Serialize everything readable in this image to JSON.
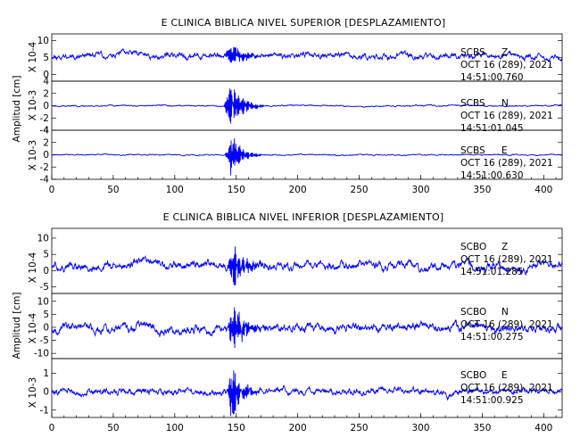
{
  "colors": {
    "trace": "#0000ff",
    "axes": "#000000",
    "background": "#ffffff"
  },
  "chart_data": [
    {
      "type": "line",
      "title": "E CLINICA BIBLICA NIVEL SUPERIOR [DESPLAZAMIENTO]",
      "ylabel": "Amplitud [cm]",
      "xlim": [
        0,
        415
      ],
      "x_ticks": [
        0,
        50,
        100,
        150,
        200,
        250,
        300,
        350,
        400
      ],
      "panels": [
        {
          "name": "SCBS Z",
          "station": "SCBS",
          "component": "Z",
          "date": "OCT 16 (289), 2021",
          "time": "14:51:00.760",
          "scale": "X 10-4",
          "ylim": [
            -2,
            12
          ],
          "y_ticks": [
            0,
            5,
            10
          ],
          "baseline": 5.5,
          "noise_amp": 2.6,
          "burst": {
            "start": 140,
            "center": 146,
            "end": 175,
            "amp": 2.5
          },
          "seed": 11
        },
        {
          "name": "SCBS N",
          "station": "SCBS",
          "component": "N",
          "date": "OCT 16 (289), 2021",
          "time": "14:51:01.045",
          "scale": "X 10-3",
          "ylim": [
            -4,
            4
          ],
          "y_ticks": [
            -4,
            -2,
            0,
            2,
            4
          ],
          "baseline": 0,
          "noise_amp": 0.35,
          "burst": {
            "start": 140,
            "center": 146,
            "end": 172,
            "amp": 3.2
          },
          "seed": 23
        },
        {
          "name": "SCBS E",
          "station": "SCBS",
          "component": "E",
          "date": "OCT 16 (289), 2021",
          "time": "14:51:00.630",
          "scale": "X 10-3",
          "ylim": [
            -4,
            4
          ],
          "y_ticks": [
            -4,
            -2,
            0,
            2,
            4
          ],
          "baseline": 0,
          "noise_amp": 0.3,
          "burst": {
            "start": 141,
            "center": 146,
            "end": 170,
            "amp": 3.0
          },
          "seed": 37
        }
      ]
    },
    {
      "type": "line",
      "title": "E CLINICA BIBLICA NIVEL INFERIOR [DESPLAZAMIENTO]",
      "ylabel": "Amplitud [cm]",
      "xlim": [
        0,
        415
      ],
      "x_ticks": [
        0,
        50,
        100,
        150,
        200,
        250,
        300,
        350,
        400
      ],
      "panels": [
        {
          "name": "SCBO Z",
          "station": "SCBO",
          "component": "Z",
          "date": "OCT 16 (289), 2021",
          "time": "14:51:01.285",
          "scale": "X 10-4",
          "ylim": [
            -7,
            13
          ],
          "y_ticks": [
            -5,
            0,
            5,
            10
          ],
          "baseline": 1.5,
          "noise_amp": 4.2,
          "burst": {
            "start": 142,
            "center": 148,
            "end": 175,
            "amp": 5.5
          },
          "seed": 51
        },
        {
          "name": "SCBO N",
          "station": "SCBO",
          "component": "N",
          "date": "OCT 16 (289), 2021",
          "time": "14:51:00.275",
          "scale": "X 10-4",
          "ylim": [
            -12,
            13
          ],
          "y_ticks": [
            -10,
            -5,
            0,
            5,
            10
          ],
          "baseline": 0,
          "noise_amp": 5.0,
          "burst": {
            "start": 142,
            "center": 148,
            "end": 175,
            "amp": 7.0
          },
          "seed": 67
        },
        {
          "name": "SCBO E",
          "station": "SCBO",
          "component": "E",
          "date": "OCT 16 (289), 2021",
          "time": "14:51:00.925",
          "scale": "X 10-3",
          "ylim": [
            -1.4,
            1.8
          ],
          "y_ticks": [
            -1,
            0,
            1
          ],
          "baseline": 0,
          "noise_amp": 0.55,
          "burst": {
            "start": 142,
            "center": 147,
            "end": 170,
            "amp": 1.2
          },
          "seed": 83
        }
      ]
    }
  ]
}
